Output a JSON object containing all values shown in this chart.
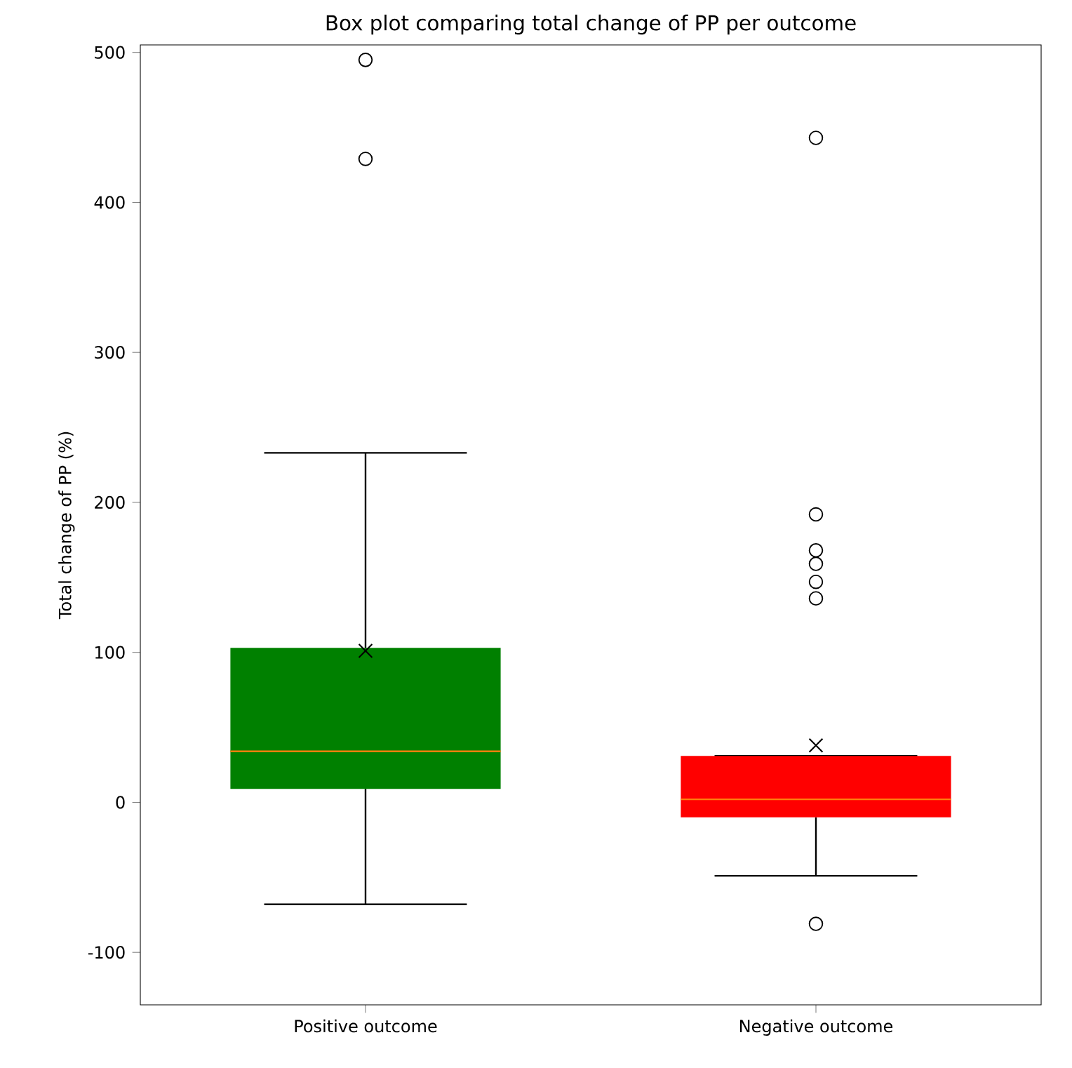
{
  "chart_data": {
    "type": "box",
    "title": "Box plot comparing total change of PP per outcome",
    "ylabel": "Total change of PP (%)",
    "categories": [
      "Positive outcome",
      "Negative outcome"
    ],
    "colors": [
      "#008000",
      "#ff0000"
    ],
    "boxes": [
      {
        "low": -68,
        "q1": 9,
        "median": 34,
        "q3": 103,
        "high": 233,
        "mean": 101,
        "outliers": [
          495,
          429
        ]
      },
      {
        "low": -49,
        "q1": -10,
        "median": 2,
        "q3": 31,
        "high": 31,
        "mean": 38,
        "outliers": [
          443,
          192,
          168,
          159,
          147,
          136,
          -81
        ]
      }
    ],
    "ylim": [
      -135,
      505
    ],
    "yticks": [
      -100,
      0,
      100,
      200,
      300,
      400,
      500
    ]
  }
}
